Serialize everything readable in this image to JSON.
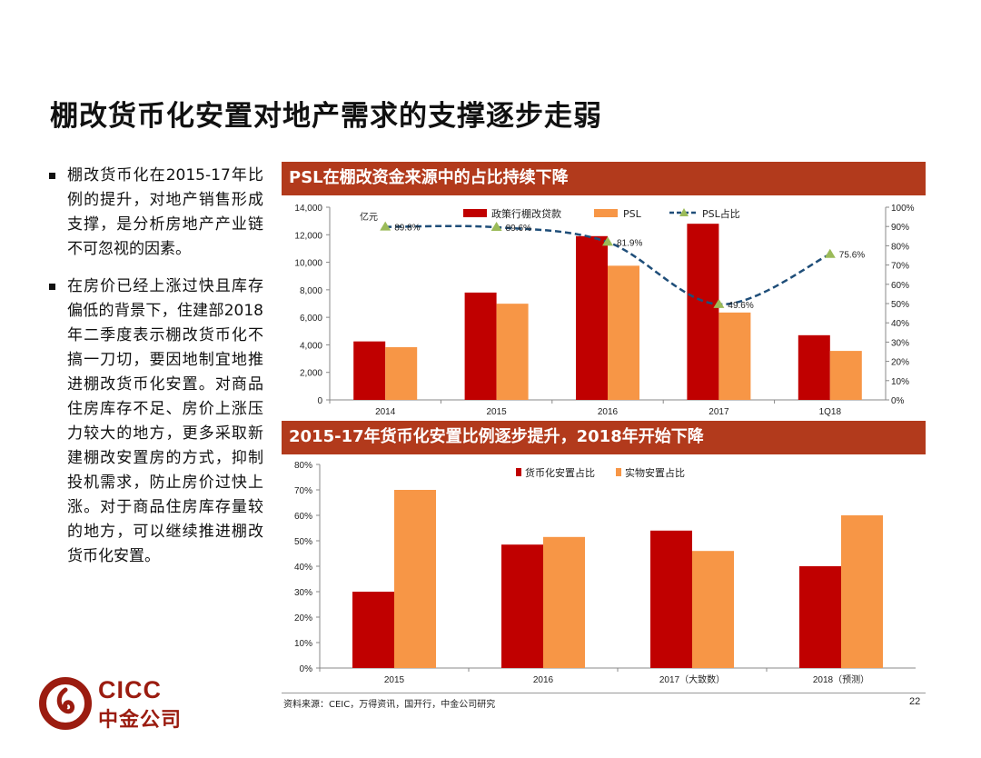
{
  "title": "棚改货币化安置对地产需求的支撑逐步走弱",
  "bullets": [
    "棚改货币化在2015-17年比例的提升，对地产销售形成支撑，是分析房地产产业链不可忽视的因素。",
    "在房价已经上涨过快且库存偏低的背景下，住建部2018年二季度表示棚改货币化不搞一刀切，要因地制宜地推进棚改货币化安置。对商品住房库存不足、房价上涨压力较大的地方，更多采取新建棚改安置房的方式，抑制投机需求，防止房价过快上涨。对于商品住房库存量较的地方，可以继续推进棚改货币化安置。"
  ],
  "colors": {
    "banner": "#b23a1c",
    "red": "#c00000",
    "orange": "#f79646",
    "ratio_line": "#1f4e79",
    "ratio_marker": "#9bbb59",
    "logo": "#9b1c10"
  },
  "chart_data": [
    {
      "type": "bar",
      "title": "PSL在棚改资金来源中的占比持续下降",
      "yunit": "亿元",
      "categories": [
        "2014",
        "2015",
        "2016",
        "2017",
        "1Q18"
      ],
      "series": [
        {
          "name": "政策行棚改贷款",
          "values": [
            4250,
            7800,
            11900,
            12800,
            4700
          ],
          "axis": "left"
        },
        {
          "name": "PSL",
          "values": [
            3830,
            6990,
            9750,
            6350,
            3560
          ],
          "axis": "left"
        },
        {
          "name": "PSL占比",
          "type": "line",
          "values": [
            89.8,
            89.6,
            81.9,
            49.6,
            75.6
          ],
          "labels": [
            "89.8%",
            "89.6%",
            "81.9%",
            "49.6%",
            "75.6%"
          ],
          "axis": "right"
        }
      ],
      "ylim": [
        0,
        14000
      ],
      "yticks": [
        "0",
        "2,000",
        "4,000",
        "6,000",
        "8,000",
        "10,000",
        "12,000",
        "14,000"
      ],
      "y2lim": [
        0,
        100
      ],
      "y2ticks": [
        "0%",
        "10%",
        "20%",
        "30%",
        "40%",
        "50%",
        "60%",
        "70%",
        "80%",
        "90%",
        "100%"
      ],
      "legend": "top"
    },
    {
      "type": "bar",
      "title": "2015-17年货币化安置比例逐步提升，2018年开始下降",
      "categories": [
        "2015",
        "2016",
        "2017（大致数）",
        "2018（预测）"
      ],
      "series": [
        {
          "name": "货币化安置占比",
          "values": [
            30,
            48.5,
            54,
            40
          ]
        },
        {
          "name": "实物安置占比",
          "values": [
            70,
            51.5,
            46,
            60
          ]
        }
      ],
      "ylim": [
        0,
        80
      ],
      "yticks": [
        "0%",
        "10%",
        "20%",
        "30%",
        "40%",
        "50%",
        "60%",
        "70%",
        "80%"
      ],
      "legend": "top"
    }
  ],
  "source": "资料来源：CEIC，万得资讯，国开行，中金公司研究",
  "page_number": "22",
  "logo": {
    "en": "CICC",
    "cn": "中金公司"
  }
}
